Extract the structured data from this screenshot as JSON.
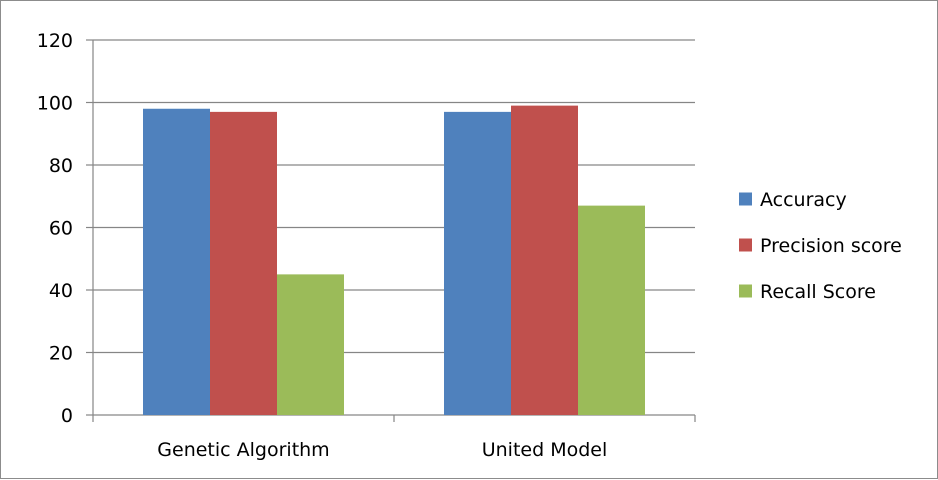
{
  "chart_data": {
    "type": "bar",
    "categories": [
      "Genetic Algorithm",
      "United Model"
    ],
    "series": [
      {
        "name": "Accuracy",
        "values": [
          98,
          97
        ],
        "color": "#4f81bd"
      },
      {
        "name": "Precision score",
        "values": [
          97,
          99
        ],
        "color": "#c0504d"
      },
      {
        "name": "Recall Score",
        "values": [
          45,
          67
        ],
        "color": "#9bbb59"
      }
    ],
    "ylim": [
      0,
      120
    ],
    "yticks": [
      0,
      20,
      40,
      60,
      80,
      100,
      120
    ],
    "ytick_labels": [
      "0",
      "20",
      "40",
      "60",
      "80",
      "100",
      "120"
    ],
    "grid": true,
    "legend_position": "right",
    "title": "",
    "xlabel": "",
    "ylabel": ""
  }
}
